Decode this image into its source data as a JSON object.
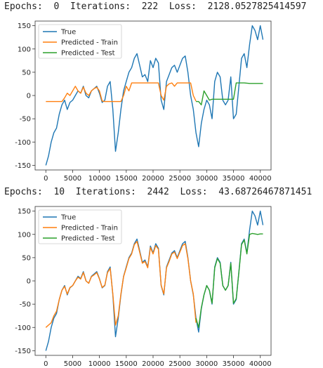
{
  "colors": {
    "true": "#1f77b4",
    "train": "#ff7f0e",
    "test": "#2ca02c"
  },
  "chart_data": [
    {
      "type": "line",
      "title_parts": {
        "epochs_label": "Epochs:",
        "epochs_value": "0",
        "iterations_label": "Iterations:",
        "iterations_value": "222",
        "loss_label": "Loss:",
        "loss_value": "2128.0527825414597"
      },
      "title": "Epochs:  0  Iterations:  222  Loss:  2128.0527825414597",
      "xlim": [
        -2000,
        42000
      ],
      "ylim": [
        -160,
        160
      ],
      "xticks": [
        "0",
        "5000",
        "10000",
        "15000",
        "20000",
        "25000",
        "30000",
        "35000",
        "40000"
      ],
      "xtick_values": [
        0,
        5000,
        10000,
        15000,
        20000,
        25000,
        30000,
        35000,
        40000
      ],
      "yticks": [
        "150",
        "100",
        "50",
        "0",
        "-50",
        "-100",
        "-150"
      ],
      "ytick_values": [
        150,
        100,
        50,
        0,
        -50,
        -100,
        -150
      ],
      "legend": {
        "position": "top-left",
        "entries": [
          "True",
          "Predicted - Train",
          "Predicted - Test"
        ]
      },
      "series": [
        {
          "name": "True",
          "x": [
            0,
            500,
            1000,
            1500,
            2000,
            2500,
            3000,
            3500,
            4000,
            4500,
            5000,
            5500,
            6000,
            6500,
            7000,
            7500,
            8000,
            8500,
            9000,
            9500,
            10000,
            10500,
            11000,
            11500,
            12000,
            12500,
            13000,
            13500,
            14000,
            14500,
            15000,
            15500,
            16000,
            16500,
            17000,
            17500,
            18000,
            18500,
            19000,
            19500,
            20000,
            20500,
            21000,
            21500,
            22000,
            22500,
            23000,
            23500,
            24000,
            24500,
            25000,
            25500,
            26000,
            26500,
            27000,
            27500,
            28000,
            28500,
            29000,
            29500,
            30000,
            30500,
            31000,
            31500,
            32000,
            32500,
            33000,
            33500,
            34000,
            34500,
            35000,
            35500,
            36000,
            36500,
            37000,
            37500,
            38000,
            38500,
            39000,
            39500,
            40000,
            40500
          ],
          "y": [
            -150,
            -130,
            -100,
            -80,
            -70,
            -40,
            -20,
            -10,
            -30,
            -15,
            -10,
            0,
            10,
            5,
            20,
            0,
            -5,
            10,
            15,
            20,
            5,
            -15,
            -10,
            20,
            30,
            -30,
            -120,
            -80,
            -30,
            10,
            30,
            50,
            60,
            80,
            90,
            65,
            40,
            45,
            30,
            75,
            60,
            80,
            70,
            -10,
            -30,
            30,
            45,
            60,
            65,
            50,
            65,
            80,
            85,
            50,
            0,
            -30,
            -80,
            -110,
            -60,
            -30,
            -10,
            -20,
            -50,
            30,
            50,
            40,
            -10,
            -20,
            -10,
            40,
            -50,
            -40,
            20,
            80,
            90,
            60,
            110,
            150,
            140,
            120,
            150,
            120
          ]
        },
        {
          "name": "Predicted - Train",
          "x": [
            0,
            3000,
            3500,
            4000,
            4500,
            5000,
            5500,
            6000,
            6500,
            7000,
            7500,
            8000,
            8500,
            9000,
            9500,
            10000,
            10500,
            11000,
            12000,
            14000,
            14500,
            15000,
            15500,
            16000,
            17000,
            18000,
            19000,
            20000,
            21000,
            21500,
            22000,
            22500,
            23000,
            23500,
            24000,
            24500,
            25000,
            26000,
            27000,
            27500,
            28000
          ],
          "y": [
            -13,
            -13,
            -5,
            5,
            0,
            10,
            20,
            10,
            5,
            18,
            5,
            0,
            10,
            15,
            18,
            10,
            -12,
            -13,
            -13,
            -13,
            0,
            20,
            10,
            27,
            27,
            27,
            27,
            27,
            27,
            0,
            -10,
            20,
            25,
            27,
            20,
            27,
            27,
            27,
            27,
            0,
            -12
          ]
        },
        {
          "name": "Predicted - Test",
          "x": [
            28000,
            28500,
            29000,
            29500,
            30000,
            30500,
            31000,
            31500,
            32000,
            32500,
            33000,
            33500,
            34000,
            34500,
            35000,
            35500,
            36000,
            37000,
            38000,
            39000,
            40000,
            40500
          ],
          "y": [
            -13,
            -13,
            -20,
            10,
            0,
            -10,
            -8,
            -8,
            -8,
            -8,
            -8,
            -8,
            -8,
            -8,
            -8,
            27,
            27,
            27,
            26,
            26,
            26,
            26
          ]
        }
      ]
    },
    {
      "type": "line",
      "title_parts": {
        "epochs_label": "Epochs:",
        "epochs_value": "10",
        "iterations_label": "Iterations:",
        "iterations_value": "2442",
        "loss_label": "Loss:",
        "loss_value": "43.68726467871451"
      },
      "title": "Epochs:  10  Iterations:  2442  Loss:  43.68726467871451",
      "xlim": [
        -2000,
        42000
      ],
      "ylim": [
        -160,
        160
      ],
      "xticks": [
        "0",
        "5000",
        "10000",
        "15000",
        "20000",
        "25000",
        "30000",
        "35000",
        "40000"
      ],
      "xtick_values": [
        0,
        5000,
        10000,
        15000,
        20000,
        25000,
        30000,
        35000,
        40000
      ],
      "yticks": [
        "150",
        "100",
        "50",
        "0",
        "-50",
        "-100",
        "-150"
      ],
      "ytick_values": [
        150,
        100,
        50,
        0,
        -50,
        -100,
        -150
      ],
      "legend": {
        "position": "top-left",
        "entries": [
          "True",
          "Predicted - Train",
          "Predicted - Test"
        ]
      },
      "series": [
        {
          "name": "True",
          "x": [
            0,
            500,
            1000,
            1500,
            2000,
            2500,
            3000,
            3500,
            4000,
            4500,
            5000,
            5500,
            6000,
            6500,
            7000,
            7500,
            8000,
            8500,
            9000,
            9500,
            10000,
            10500,
            11000,
            11500,
            12000,
            12500,
            13000,
            13500,
            14000,
            14500,
            15000,
            15500,
            16000,
            16500,
            17000,
            17500,
            18000,
            18500,
            19000,
            19500,
            20000,
            20500,
            21000,
            21500,
            22000,
            22500,
            23000,
            23500,
            24000,
            24500,
            25000,
            25500,
            26000,
            26500,
            27000,
            27500,
            28000,
            28500,
            29000,
            29500,
            30000,
            30500,
            31000,
            31500,
            32000,
            32500,
            33000,
            33500,
            34000,
            34500,
            35000,
            35500,
            36000,
            36500,
            37000,
            37500,
            38000,
            38500,
            39000,
            39500,
            40000,
            40500
          ],
          "y": [
            -150,
            -130,
            -100,
            -80,
            -70,
            -40,
            -20,
            -10,
            -30,
            -15,
            -10,
            0,
            10,
            5,
            20,
            0,
            -5,
            10,
            15,
            20,
            5,
            -15,
            -10,
            20,
            30,
            -30,
            -120,
            -80,
            -30,
            10,
            30,
            50,
            60,
            80,
            90,
            65,
            40,
            45,
            30,
            75,
            60,
            80,
            70,
            -10,
            -30,
            30,
            45,
            60,
            65,
            50,
            65,
            80,
            85,
            50,
            0,
            -30,
            -80,
            -110,
            -60,
            -30,
            -10,
            -20,
            -50,
            30,
            50,
            40,
            -10,
            -20,
            -10,
            40,
            -50,
            -40,
            20,
            80,
            90,
            60,
            110,
            150,
            140,
            120,
            150,
            120
          ]
        },
        {
          "name": "Predicted - Train",
          "x": [
            0,
            500,
            1000,
            1500,
            2000,
            2500,
            3000,
            3500,
            4000,
            4500,
            5000,
            5500,
            6000,
            6500,
            7000,
            7500,
            8000,
            8500,
            9000,
            9500,
            10000,
            10500,
            11000,
            11500,
            12000,
            12500,
            13000,
            13500,
            14000,
            14500,
            15000,
            15500,
            16000,
            16500,
            17000,
            17500,
            18000,
            18500,
            19000,
            19500,
            20000,
            20500,
            21000,
            21500,
            22000,
            22500,
            23000,
            23500,
            24000,
            24500,
            25000,
            25500,
            26000,
            26500,
            27000,
            27500,
            28000
          ],
          "y": [
            -100,
            -95,
            -90,
            -75,
            -65,
            -40,
            -20,
            -12,
            -28,
            -14,
            -10,
            0,
            8,
            4,
            18,
            0,
            -5,
            9,
            13,
            18,
            4,
            -14,
            -9,
            18,
            27,
            -28,
            -95,
            -75,
            -28,
            9,
            28,
            48,
            58,
            78,
            85,
            62,
            38,
            42,
            28,
            72,
            58,
            76,
            68,
            -9,
            -28,
            28,
            42,
            58,
            62,
            48,
            62,
            76,
            80,
            48,
            0,
            -28,
            -90
          ]
        },
        {
          "name": "Predicted - Test",
          "x": [
            28000,
            28500,
            29000,
            29500,
            30000,
            30500,
            31000,
            31500,
            32000,
            32500,
            33000,
            33500,
            34000,
            34500,
            35000,
            35500,
            36000,
            36500,
            37000,
            37500,
            38000,
            38500,
            39000,
            39500,
            40000,
            40500
          ],
          "y": [
            -80,
            -100,
            -58,
            -30,
            -10,
            -20,
            -48,
            28,
            48,
            38,
            -10,
            -20,
            -10,
            38,
            -48,
            -38,
            18,
            78,
            88,
            58,
            100,
            102,
            101,
            100,
            101,
            101
          ]
        }
      ]
    }
  ]
}
